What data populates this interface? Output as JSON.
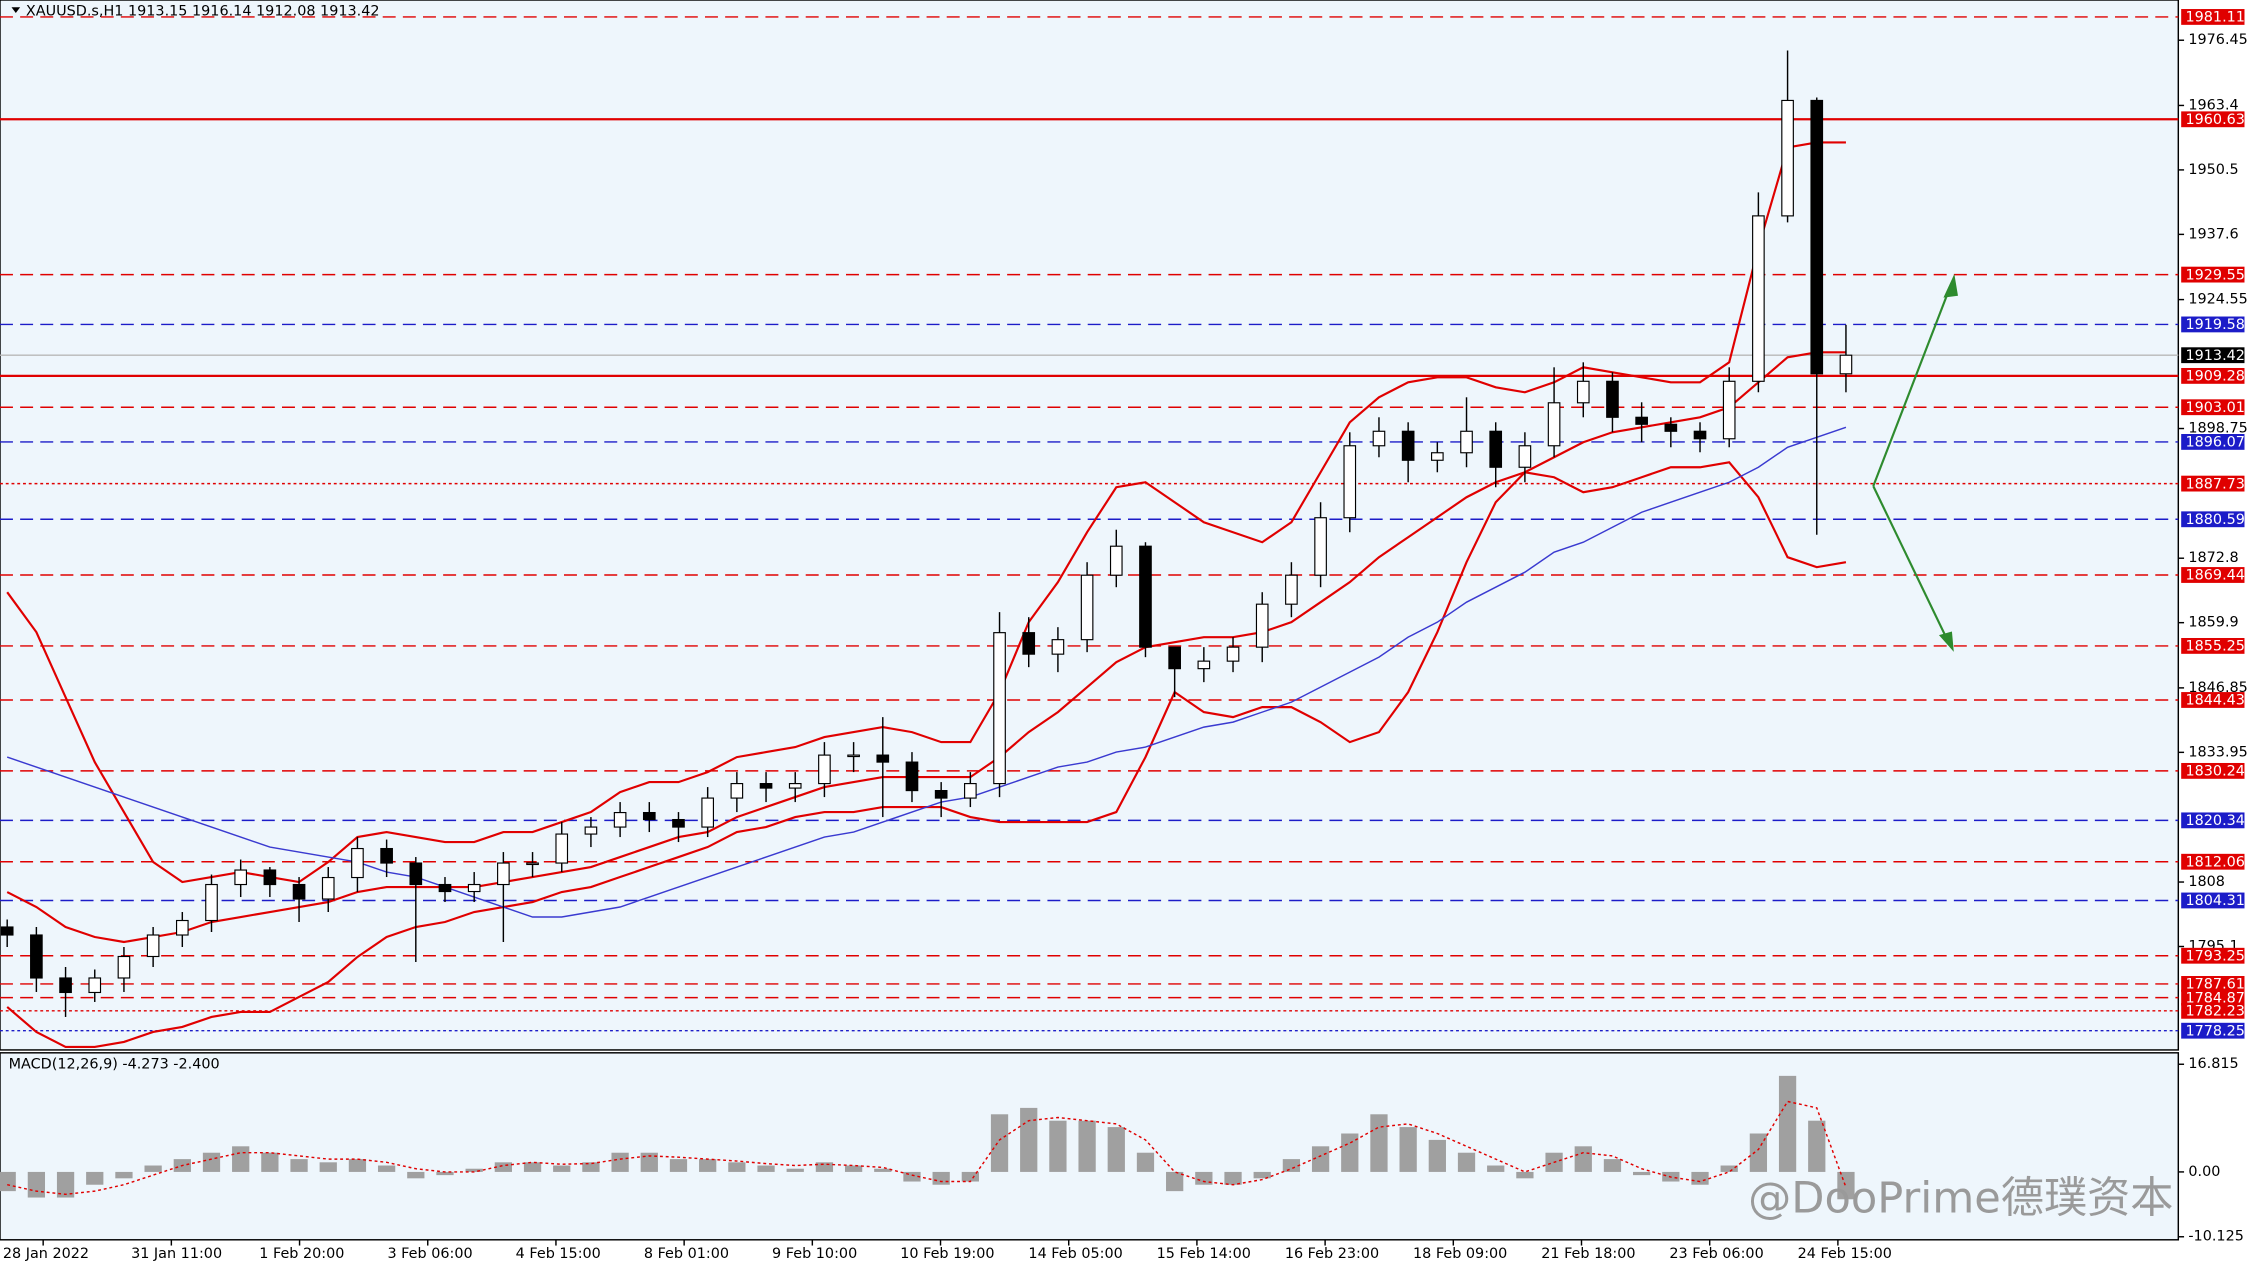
{
  "chart_data": [
    {
      "type": "candlestick",
      "title": "XAUUSD.s,H1  1913.15 1916.14 1912.08 1913.42",
      "ylim": [
        1774.4,
        1984.5
      ],
      "yticks": [
        1976.45,
        1963.4,
        1950.5,
        1937.6,
        1924.55,
        1898.75,
        1872.8,
        1859.9,
        1846.85,
        1833.95,
        1808.0,
        1795.1
      ],
      "time_labels": [
        "28 Jan 2022",
        "31 Jan 11:00",
        "1 Feb 20:00",
        "3 Feb 06:00",
        "4 Feb 15:00",
        "8 Feb 01:00",
        "9 Feb 10:00",
        "10 Feb 19:00",
        "14 Feb 05:00",
        "15 Feb 14:00",
        "16 Feb 23:00",
        "18 Feb 09:00",
        "21 Feb 18:00",
        "23 Feb 06:00",
        "24 Feb 15:00"
      ],
      "open": [
        1799.0,
        1797.4,
        1788.8,
        1785.9,
        1788.8,
        1793.1,
        1797.4,
        1800.3,
        1807.5,
        1810.4,
        1807.5,
        1804.6,
        1808.9,
        1814.7,
        1811.8,
        1807.5,
        1806.1,
        1807.5,
        1811.8,
        1811.8,
        1817.6,
        1819.0,
        1821.9,
        1820.5,
        1819.0,
        1824.8,
        1827.7,
        1826.8,
        1827.7,
        1833.4,
        1833.4,
        1832.0,
        1826.3,
        1824.8,
        1827.7,
        1857.9,
        1853.6,
        1856.5,
        1869.4,
        1875.2,
        1855.0,
        1850.7,
        1852.2,
        1855.0,
        1863.6,
        1869.4,
        1880.9,
        1895.3,
        1898.2,
        1892.4,
        1893.9,
        1898.2,
        1891.0,
        1895.3,
        1903.9,
        1908.2,
        1901.0,
        1899.6,
        1898.2,
        1896.7,
        1908.2,
        1941.3,
        1964.4,
        1909.7
      ],
      "high": [
        1800.5,
        1799,
        1791,
        1790.5,
        1795,
        1799,
        1802,
        1809.5,
        1812.5,
        1811,
        1809,
        1811,
        1817,
        1816.5,
        1813,
        1809,
        1810,
        1814,
        1814,
        1820,
        1821,
        1824,
        1824,
        1822,
        1827,
        1830,
        1830,
        1830,
        1836,
        1836,
        1841,
        1834,
        1828,
        1830,
        1862,
        1861,
        1859,
        1872,
        1878.5,
        1876,
        1853,
        1855,
        1857,
        1866,
        1872,
        1884,
        1898,
        1901,
        1900,
        1896,
        1905,
        1900,
        1898,
        1911,
        1912,
        1910,
        1904,
        1901,
        1900,
        1911,
        1946,
        1974.4,
        1965,
        1919.5
      ],
      "low": [
        1795,
        1786,
        1781,
        1784,
        1786,
        1791,
        1795,
        1798,
        1805,
        1805,
        1800,
        1802,
        1806,
        1809,
        1792,
        1804,
        1804,
        1796,
        1809,
        1810,
        1815,
        1817,
        1818,
        1816,
        1817,
        1822,
        1824,
        1824,
        1825,
        1830,
        1821,
        1824,
        1821,
        1823,
        1825,
        1851,
        1850,
        1854,
        1867,
        1853,
        1845,
        1848,
        1850,
        1852,
        1861,
        1867,
        1878,
        1893,
        1888,
        1890,
        1891,
        1887,
        1888,
        1893,
        1901,
        1898,
        1896,
        1895,
        1894,
        1895,
        1906,
        1940,
        1877.5,
        1906
      ],
      "close": [
        1797.4,
        1788.8,
        1785.9,
        1788.8,
        1793.1,
        1797.4,
        1800.3,
        1807.5,
        1810.4,
        1807.5,
        1804.6,
        1808.9,
        1814.7,
        1811.8,
        1807.5,
        1806.1,
        1807.5,
        1811.8,
        1811.8,
        1817.6,
        1819.0,
        1821.9,
        1820.5,
        1819.0,
        1824.8,
        1827.7,
        1826.8,
        1827.7,
        1833.4,
        1833.4,
        1832.0,
        1826.3,
        1824.8,
        1827.7,
        1857.9,
        1853.6,
        1856.5,
        1869.4,
        1875.2,
        1855.0,
        1850.7,
        1852.2,
        1855.0,
        1863.6,
        1869.4,
        1880.9,
        1895.3,
        1898.2,
        1892.4,
        1893.9,
        1898.2,
        1891.0,
        1895.3,
        1903.9,
        1908.2,
        1901.0,
        1899.6,
        1898.2,
        1896.7,
        1908.2,
        1941.3,
        1964.4,
        1909.7,
        1913.42
      ],
      "series": [
        {
          "color": "#e00000",
          "values": [
            1866,
            1858,
            1845,
            1832,
            1822,
            1812,
            1808,
            1809,
            1810,
            1809,
            1808,
            1812,
            1817,
            1818,
            1817,
            1816,
            1816,
            1818,
            1818,
            1820,
            1822,
            1826,
            1828,
            1828,
            1830,
            1833,
            1834,
            1835,
            1837,
            1838,
            1839,
            1838,
            1836,
            1836,
            1846,
            1860,
            1868,
            1878,
            1887,
            1888,
            1884,
            1880,
            1878,
            1876,
            1880,
            1890,
            1900,
            1905,
            1908,
            1909,
            1909,
            1907,
            1906,
            1908,
            1911,
            1910,
            1909,
            1908,
            1908,
            1912,
            1935,
            1955,
            1956,
            1956
          ]
        },
        {
          "color": "#e00000",
          "values": [
            1806,
            1803,
            1799,
            1797,
            1796,
            1797,
            1798,
            1800,
            1801,
            1802,
            1803,
            1804,
            1806,
            1807,
            1807,
            1807,
            1807,
            1808,
            1809,
            1810,
            1811,
            1813,
            1815,
            1817,
            1818,
            1821,
            1823,
            1825,
            1827,
            1828,
            1829,
            1829,
            1829,
            1829,
            1833,
            1838,
            1842,
            1847,
            1852,
            1855,
            1856,
            1857,
            1857,
            1858,
            1860,
            1864,
            1868,
            1873,
            1877,
            1881,
            1885,
            1888,
            1890,
            1893,
            1896,
            1898,
            1899,
            1900,
            1901,
            1903,
            1908,
            1913,
            1914,
            1914
          ]
        },
        {
          "color": "#e00000",
          "values": [
            1783,
            1778,
            1775,
            1775,
            1776,
            1778,
            1779,
            1781,
            1782,
            1782,
            1785,
            1788,
            1793,
            1797,
            1799,
            1800,
            1802,
            1803,
            1804,
            1806,
            1807,
            1809,
            1811,
            1813,
            1815,
            1818,
            1819,
            1821,
            1822,
            1822,
            1823,
            1823,
            1823,
            1821,
            1820,
            1820,
            1820,
            1820,
            1822,
            1833,
            1846,
            1842,
            1841,
            1843,
            1843,
            1840,
            1836,
            1838,
            1846,
            1858,
            1872,
            1884,
            1890,
            1889,
            1886,
            1887,
            1889,
            1891,
            1891,
            1892,
            1885,
            1873,
            1871,
            1872
          ]
        },
        {
          "color": "#3a3ad0",
          "values": [
            1833,
            1831,
            1829,
            1827,
            1825,
            1823,
            1821,
            1819,
            1817,
            1815,
            1814,
            1813,
            1812,
            1810,
            1809,
            1807,
            1805,
            1803,
            1801,
            1801,
            1802,
            1803,
            1805,
            1807,
            1809,
            1811,
            1813,
            1815,
            1817,
            1818,
            1820,
            1822,
            1824,
            1825,
            1827,
            1829,
            1831,
            1832,
            1834,
            1835,
            1837,
            1839,
            1840,
            1842,
            1844,
            1847,
            1850,
            1853,
            1857,
            1860,
            1864,
            1867,
            1870,
            1874,
            1876,
            1879,
            1882,
            1884,
            1886,
            1888,
            1891,
            1895,
            1897,
            1899
          ]
        }
      ],
      "levels": [
        {
          "value": 1981.11,
          "color": "#e00000",
          "style": "dashed"
        },
        {
          "value": 1960.63,
          "color": "#e00000",
          "style": "solid"
        },
        {
          "value": 1929.55,
          "color": "#e00000",
          "style": "dashed"
        },
        {
          "value": 1919.58,
          "color": "#1c1cc8",
          "style": "dashed"
        },
        {
          "value": 1913.42,
          "color": "#000000",
          "style": "current"
        },
        {
          "value": 1909.28,
          "color": "#e00000",
          "style": "solid"
        },
        {
          "value": 1903.01,
          "color": "#e00000",
          "style": "dashed"
        },
        {
          "value": 1896.07,
          "color": "#1c1cc8",
          "style": "dashed"
        },
        {
          "value": 1887.73,
          "color": "#e00000",
          "style": "dotted"
        },
        {
          "value": 1880.59,
          "color": "#1c1cc8",
          "style": "dashed"
        },
        {
          "value": 1869.44,
          "color": "#e00000",
          "style": "dashed"
        },
        {
          "value": 1855.25,
          "color": "#e00000",
          "style": "dashed"
        },
        {
          "value": 1844.43,
          "color": "#e00000",
          "style": "dashed"
        },
        {
          "value": 1830.24,
          "color": "#e00000",
          "style": "dashed"
        },
        {
          "value": 1820.34,
          "color": "#1c1cc8",
          "style": "dashed"
        },
        {
          "value": 1812.06,
          "color": "#e00000",
          "style": "dashed"
        },
        {
          "value": 1804.31,
          "color": "#1c1cc8",
          "style": "dashed"
        },
        {
          "value": 1793.25,
          "color": "#e00000",
          "style": "dashed"
        },
        {
          "value": 1787.61,
          "color": "#e00000",
          "style": "dashed"
        },
        {
          "value": 1784.87,
          "color": "#e00000",
          "style": "dashed"
        },
        {
          "value": 1782.23,
          "color": "#e00000",
          "style": "dotted"
        },
        {
          "value": 1778.25,
          "color": "#1c1cc8",
          "style": "dotted"
        }
      ],
      "watermark": "@DooPrime德璞资本"
    },
    {
      "type": "macd",
      "title": "MACD(12,26,9) -4.273 -2.400",
      "ylim": [
        -10.6,
        18.6
      ],
      "yticks": [
        16.815,
        {
          "value": 0,
          "label": "0.00"
        },
        -10.125
      ],
      "series": [
        {
          "color": "#a0a0a0",
          "values": [
            -3,
            -4,
            -4,
            -2,
            -1,
            1,
            2,
            3,
            4,
            3,
            2,
            1.5,
            2,
            1,
            -1,
            -0.5,
            0.5,
            1.5,
            1.5,
            1,
            1.5,
            3,
            3,
            2,
            2,
            1.5,
            1,
            0.5,
            1.5,
            1,
            0.5,
            -1.5,
            -2,
            -1.5,
            9,
            10,
            8,
            8,
            7,
            3,
            -3,
            -2,
            -2,
            -1,
            2,
            4,
            6,
            9,
            7,
            5,
            3,
            1,
            -1,
            3,
            4,
            2,
            -0.5,
            -1.5,
            -2,
            1,
            6,
            15,
            8,
            -4.273
          ]
        },
        {
          "color": "#e00000",
          "values": [
            -2,
            -3,
            -3.5,
            -3,
            -2,
            -0.5,
            1,
            2,
            3,
            3,
            2.5,
            2,
            2,
            1.5,
            0.5,
            0,
            0,
            1,
            1.5,
            1.2,
            1.3,
            2,
            2.5,
            2.3,
            2,
            1.7,
            1.3,
            1,
            1.2,
            1,
            0.7,
            -0.5,
            -1.5,
            -1.5,
            5,
            8,
            8.5,
            8,
            7.5,
            5,
            0,
            -1.5,
            -2,
            -1.2,
            0.5,
            2.5,
            4.5,
            7,
            7.5,
            6,
            4,
            2,
            0,
            1.5,
            3,
            2.5,
            0.5,
            -0.8,
            -1.5,
            0,
            3.5,
            11,
            10,
            -2.4
          ]
        }
      ]
    }
  ]
}
